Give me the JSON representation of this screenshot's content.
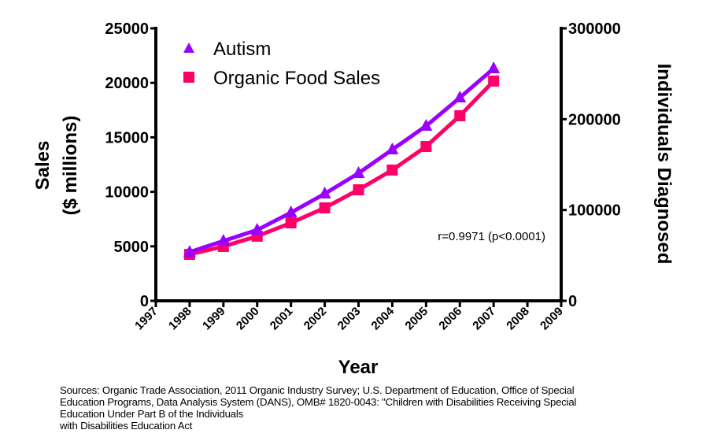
{
  "chart_data": {
    "type": "line",
    "title": "",
    "xlabel": "Year",
    "ylabel": "Sales\n($ millions)",
    "ylabel_lines": [
      "Sales",
      "($ millions)"
    ],
    "y2label": "Individuals Diagnosed",
    "x_ticks": [
      "1997",
      "1998",
      "1999",
      "2000",
      "2001",
      "2002",
      "2003",
      "2004",
      "2005",
      "2006",
      "2007",
      "2008",
      "2009"
    ],
    "xlim": [
      1997,
      2009
    ],
    "ylim": [
      0,
      25000
    ],
    "y_ticks": [
      "0",
      "5000",
      "10000",
      "15000",
      "20000",
      "25000"
    ],
    "y2lim": [
      0,
      300000
    ],
    "y2_ticks": [
      "0",
      "100000",
      "200000",
      "300000"
    ],
    "grid": false,
    "legend_position": "top-left",
    "x": [
      1998,
      1999,
      2000,
      2001,
      2002,
      2003,
      2004,
      2005,
      2006,
      2007
    ],
    "series": [
      {
        "name": "Autism",
        "axis": "right",
        "marker": "triangle",
        "color": "#9900ff",
        "values": [
          53700,
          65900,
          78000,
          97100,
          117900,
          140500,
          166500,
          192500,
          223700,
          255800
        ]
      },
      {
        "name": "Organic Food Sales",
        "axis": "left",
        "marker": "square",
        "color": "#ff0066",
        "values": [
          4260,
          4990,
          5930,
          7150,
          8530,
          10190,
          12000,
          14160,
          16980,
          20160
        ]
      }
    ],
    "annotations": [
      "r=0.9971 (p<0.0001)"
    ]
  },
  "source_lines": [
    "Sources: Organic Trade Association,  2011 Organic Industry Survey; U.S. Department of Education, Office of Special",
    "Education Programs, Data Analysis System (DANS), OMB# 1820-0043: \"Children with Disabilities Receiving Special",
    "Education Under Part B of the Individuals",
    "with Disabilities Education Act"
  ]
}
